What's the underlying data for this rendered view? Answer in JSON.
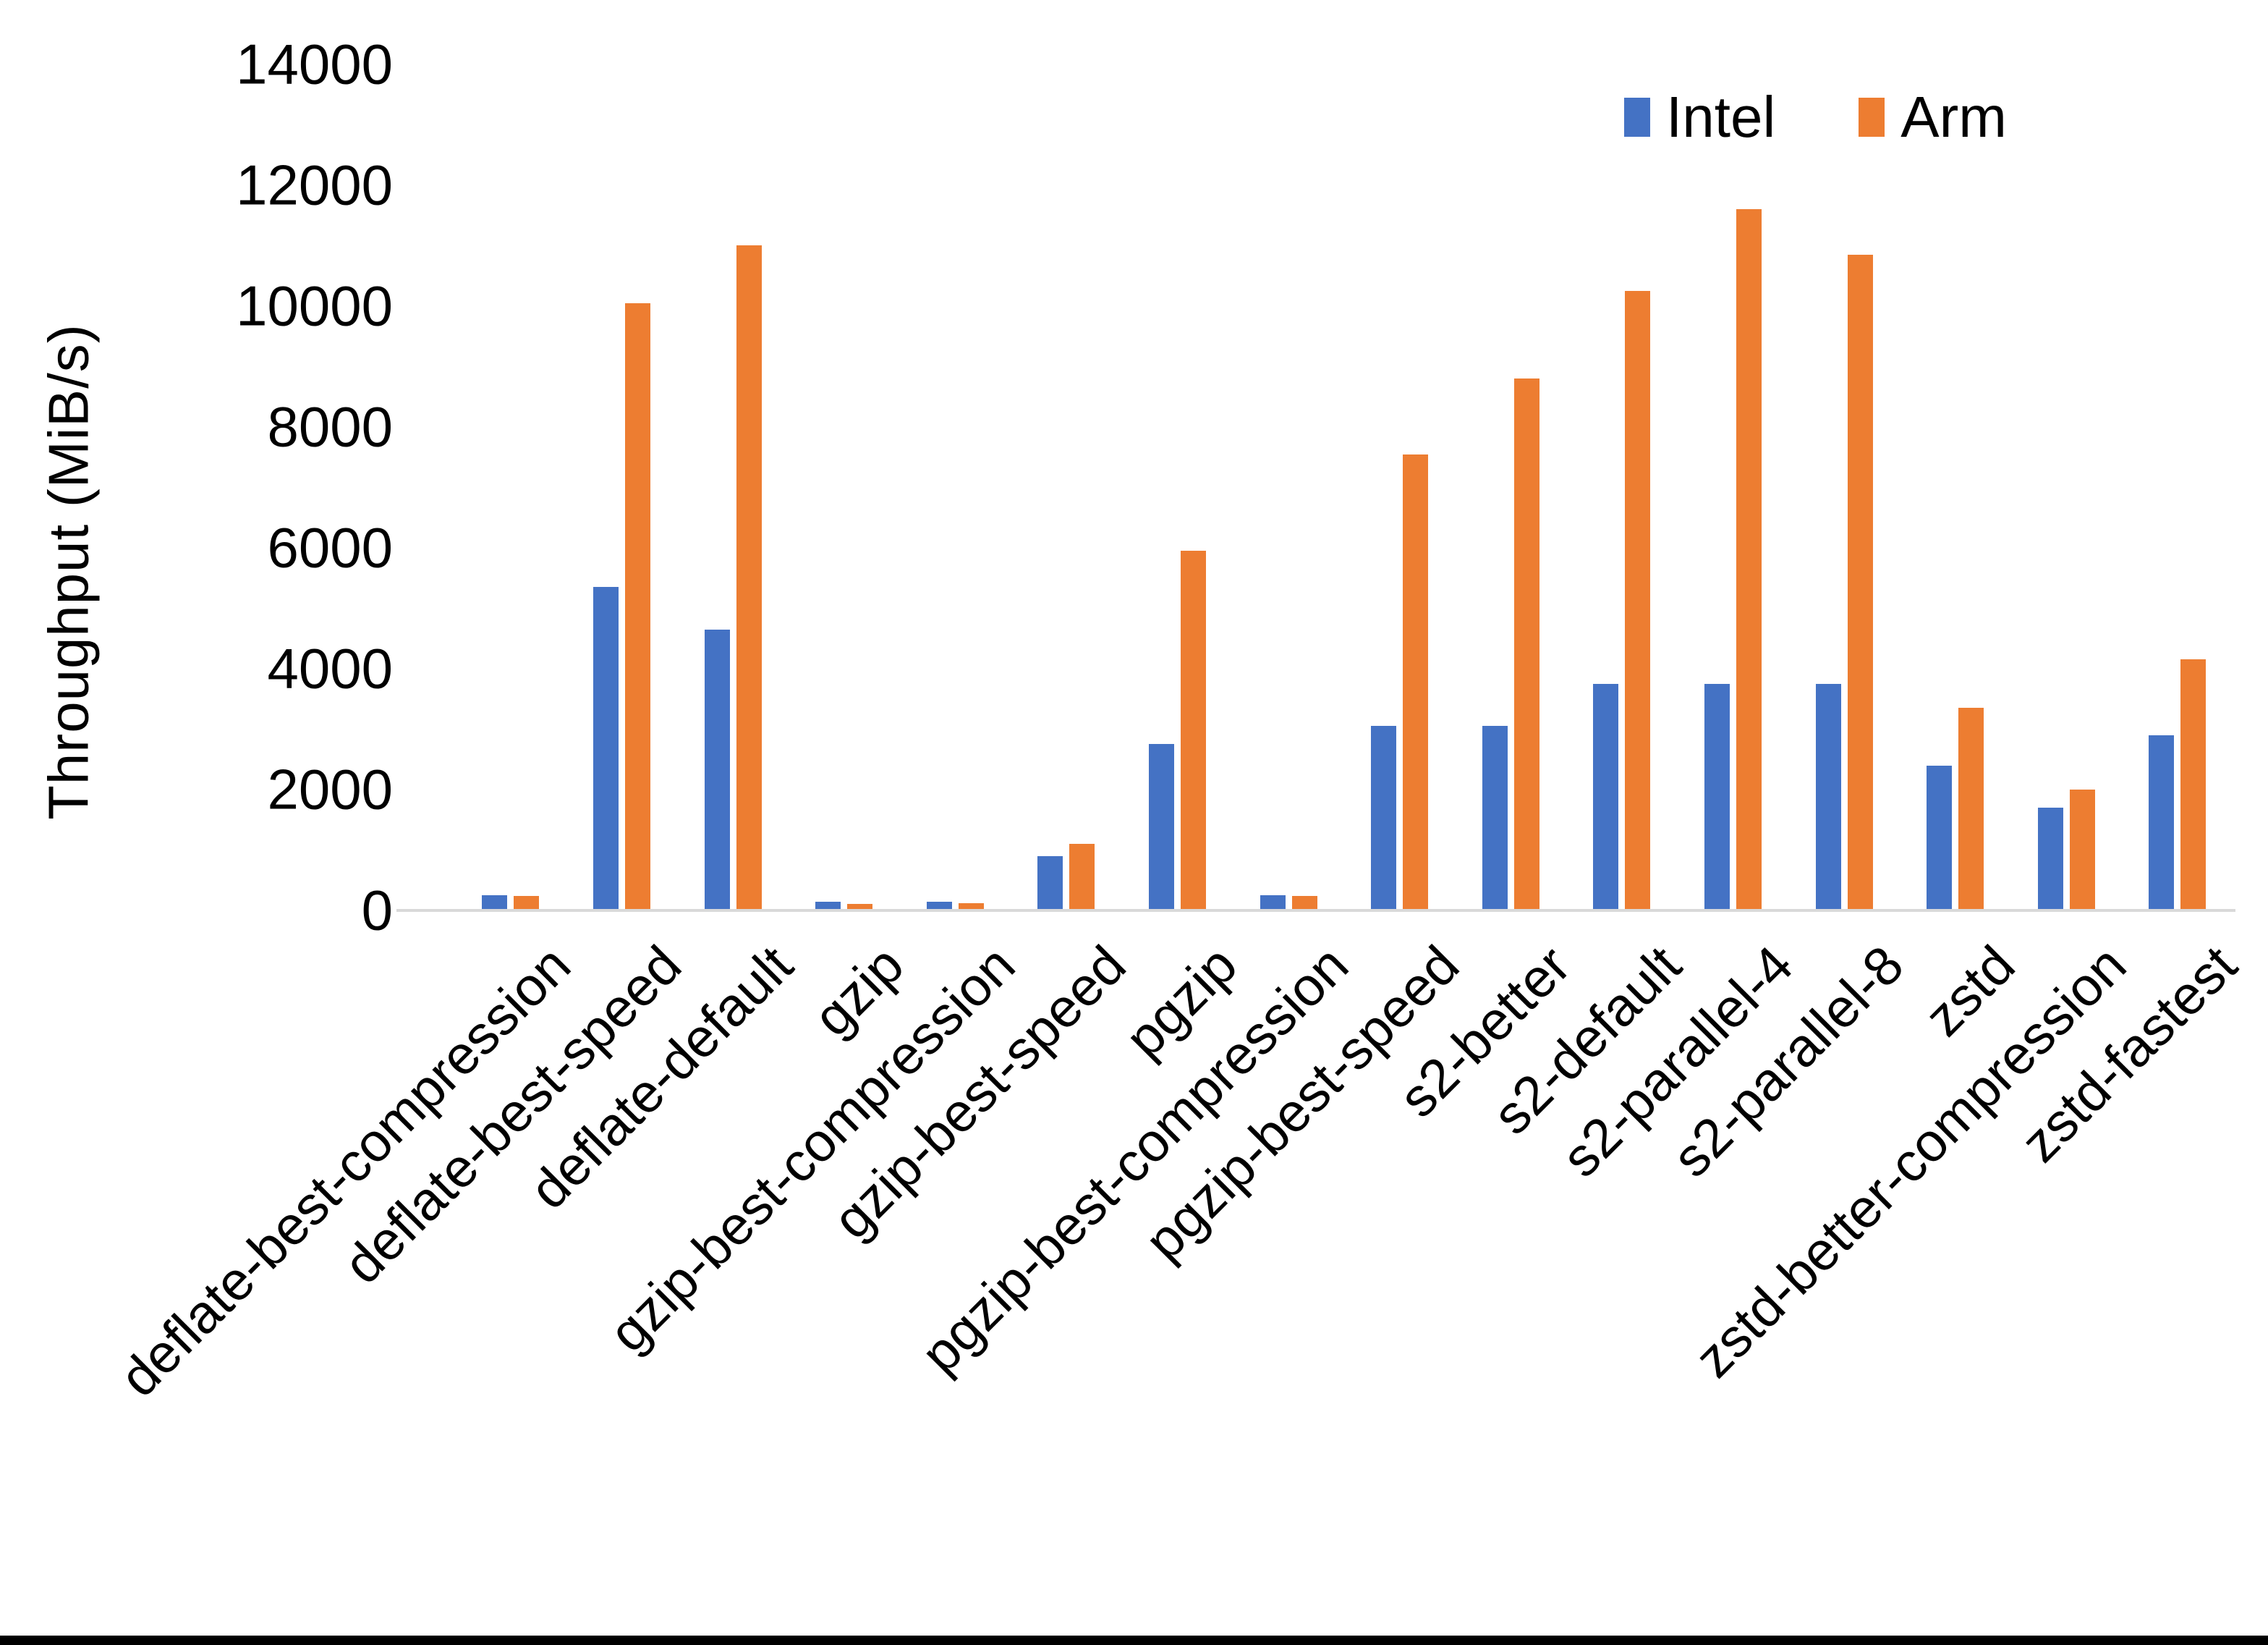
{
  "chart_data": {
    "type": "bar",
    "title": "",
    "xlabel": "",
    "ylabel": "Throughput (MiB/s)",
    "ylim": [
      0,
      14000
    ],
    "yticks": [
      0,
      2000,
      4000,
      6000,
      8000,
      10000,
      12000,
      14000
    ],
    "grid": false,
    "legend_position": "top-right",
    "categories": [
      "deflate-best-compression",
      "deflate-best-speed",
      "deflate-default",
      "gzip",
      "gzip-best-compression",
      "gzip-best-speed",
      "pgzip",
      "pgzip-best-compression",
      "pgzip-best-speed",
      "s2-better",
      "s2-default",
      "s2-parallel-4",
      "s2-parallel-8",
      "zstd",
      "zstd-better-compression",
      "zstd-fastest"
    ],
    "series": [
      {
        "name": "Intel",
        "color": "#4472C4",
        "values": [
          250,
          5350,
          4650,
          145,
          140,
          900,
          2750,
          250,
          3050,
          3050,
          3750,
          3750,
          3750,
          2400,
          1700,
          2900
        ]
      },
      {
        "name": "Arm",
        "color": "#ED7D31",
        "values": [
          240,
          10050,
          11000,
          110,
          120,
          1100,
          5950,
          240,
          7550,
          8800,
          10250,
          11600,
          10850,
          3350,
          2000,
          4150
        ]
      }
    ]
  },
  "colors": {
    "background": "#FFFFFF",
    "axis_line": "#D9D9D9",
    "text": "#000000",
    "bottom_border": "#000000"
  }
}
